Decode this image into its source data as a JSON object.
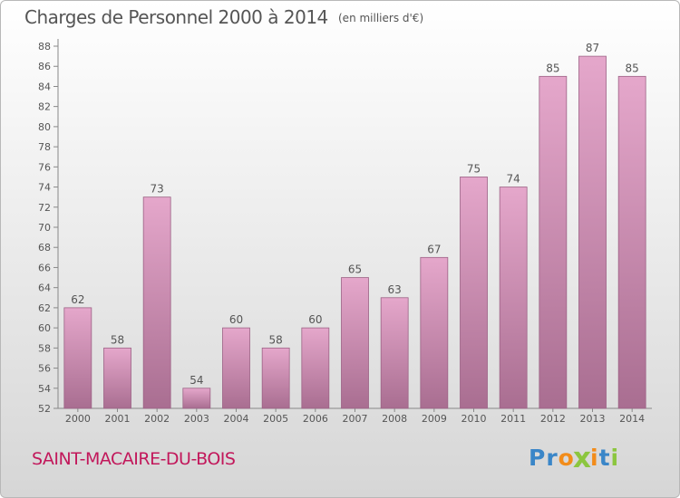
{
  "header": {
    "title": "Charges de Personnel 2000 à 2014",
    "unit": "(en milliers d'€)"
  },
  "footer": {
    "commune": "SAINT-MACAIRE-DU-BOIS",
    "logo_letters": [
      {
        "ch": "P",
        "color": "#3a86c8"
      },
      {
        "ch": "r",
        "color": "#3a86c8"
      },
      {
        "ch": "o",
        "color": "#f28c1a"
      },
      {
        "ch": "x",
        "color": "#8cc63f"
      },
      {
        "ch": "i",
        "color": "#f28c1a"
      },
      {
        "ch": "t",
        "color": "#3a86c8"
      },
      {
        "ch": "i",
        "color": "#8cc63f"
      }
    ]
  },
  "colors": {
    "bar_light": "#e5a7cb",
    "bar_dark": "#a96e91",
    "text": "#555555",
    "commune": "#c2185b"
  },
  "chart_data": {
    "type": "bar",
    "title": "Charges de Personnel 2000 à 2014",
    "subtitle": "(en milliers d'€)",
    "xlabel": "",
    "ylabel": "",
    "categories": [
      "2000",
      "2001",
      "2002",
      "2003",
      "2004",
      "2005",
      "2006",
      "2007",
      "2008",
      "2009",
      "2010",
      "2011",
      "2012",
      "2013",
      "2014"
    ],
    "values": [
      62,
      58,
      73,
      54,
      60,
      58,
      60,
      65,
      63,
      67,
      75,
      74,
      85,
      87,
      85
    ],
    "data_labels": [
      "62",
      "58",
      "73",
      "54",
      "60",
      "58",
      "60",
      "65",
      "63",
      "67",
      "75",
      "74",
      "85",
      "87",
      "85"
    ],
    "ylim": [
      52,
      88
    ],
    "yticks": [
      "52",
      "54",
      "56",
      "58",
      "60",
      "62",
      "64",
      "66",
      "68",
      "70",
      "72",
      "74",
      "76",
      "78",
      "80",
      "82",
      "84",
      "86",
      "88"
    ],
    "grid": false,
    "legend": "none"
  }
}
